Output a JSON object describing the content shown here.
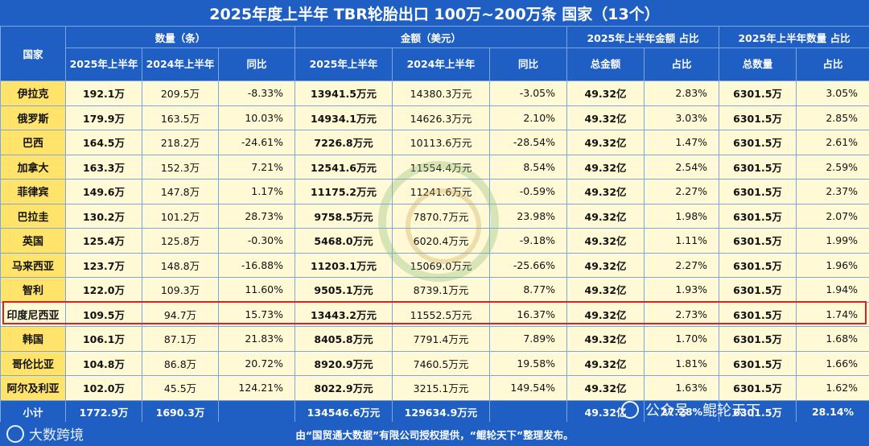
{
  "title": "2025年度上半年 TBR轮胎出口 100万~200万条 国家（13个）",
  "headers": {
    "country": "国家",
    "group_qty": "数量（条）",
    "group_amt": "金额（美元）",
    "group_amt_share": "2025年上半年金额 占比",
    "group_qty_share": "2025年上半年数量 占比",
    "h2025": "2025年上半年",
    "h2024": "2024年上半年",
    "yoy": "同比",
    "total_amount": "总金额",
    "share": "占比",
    "total_qty": "总数量"
  },
  "rows": [
    {
      "country": "伊拉克",
      "q25": "192.1万",
      "q24": "209.5万",
      "qy": "-8.33%",
      "a25": "13941.5万元",
      "a24": "14380.3万元",
      "ay": "-3.05%",
      "ta": "49.32亿",
      "as": "2.83%",
      "tq": "6301.5万",
      "qs": "3.05%"
    },
    {
      "country": "俄罗斯",
      "q25": "179.9万",
      "q24": "163.5万",
      "qy": "10.03%",
      "a25": "14934.1万元",
      "a24": "14626.3万元",
      "ay": "2.10%",
      "ta": "49.32亿",
      "as": "3.03%",
      "tq": "6301.5万",
      "qs": "2.85%"
    },
    {
      "country": "巴西",
      "q25": "164.5万",
      "q24": "218.2万",
      "qy": "-24.61%",
      "a25": "7226.8万元",
      "a24": "10113.6万元",
      "ay": "-28.54%",
      "ta": "49.32亿",
      "as": "1.47%",
      "tq": "6301.5万",
      "qs": "2.61%"
    },
    {
      "country": "加拿大",
      "q25": "163.3万",
      "q24": "152.3万",
      "qy": "7.21%",
      "a25": "12541.6万元",
      "a24": "11554.4万元",
      "ay": "8.54%",
      "ta": "49.32亿",
      "as": "2.54%",
      "tq": "6301.5万",
      "qs": "2.59%"
    },
    {
      "country": "菲律宾",
      "q25": "149.6万",
      "q24": "147.8万",
      "qy": "1.17%",
      "a25": "11175.2万元",
      "a24": "11241.6万元",
      "ay": "-0.59%",
      "ta": "49.32亿",
      "as": "2.27%",
      "tq": "6301.5万",
      "qs": "2.37%"
    },
    {
      "country": "巴拉圭",
      "q25": "130.2万",
      "q24": "101.2万",
      "qy": "28.73%",
      "a25": "9758.5万元",
      "a24": "7870.7万元",
      "ay": "23.98%",
      "ta": "49.32亿",
      "as": "1.98%",
      "tq": "6301.5万",
      "qs": "2.07%"
    },
    {
      "country": "英国",
      "q25": "125.4万",
      "q24": "125.8万",
      "qy": "-0.30%",
      "a25": "5468.0万元",
      "a24": "6020.4万元",
      "ay": "-9.18%",
      "ta": "49.32亿",
      "as": "1.11%",
      "tq": "6301.5万",
      "qs": "1.99%"
    },
    {
      "country": "马来西亚",
      "q25": "123.7万",
      "q24": "148.8万",
      "qy": "-16.88%",
      "a25": "11203.1万元",
      "a24": "15069.0万元",
      "ay": "-25.66%",
      "ta": "49.32亿",
      "as": "2.27%",
      "tq": "6301.5万",
      "qs": "1.96%"
    },
    {
      "country": "智利",
      "q25": "122.0万",
      "q24": "109.3万",
      "qy": "11.60%",
      "a25": "9505.1万元",
      "a24": "8739.1万元",
      "ay": "8.77%",
      "ta": "49.32亿",
      "as": "1.93%",
      "tq": "6301.5万",
      "qs": "1.94%"
    },
    {
      "country": "印度尼西亚",
      "q25": "109.5万",
      "q24": "94.7万",
      "qy": "15.73%",
      "a25": "13443.2万元",
      "a24": "11552.5万元",
      "ay": "16.37%",
      "ta": "49.32亿",
      "as": "2.73%",
      "tq": "6301.5万",
      "qs": "1.74%"
    },
    {
      "country": "韩国",
      "q25": "106.1万",
      "q24": "87.1万",
      "qy": "21.83%",
      "a25": "8405.8万元",
      "a24": "7791.4万元",
      "ay": "7.89%",
      "ta": "49.32亿",
      "as": "1.70%",
      "tq": "6301.5万",
      "qs": "1.68%"
    },
    {
      "country": "哥伦比亚",
      "q25": "104.8万",
      "q24": "86.8万",
      "qy": "20.72%",
      "a25": "8920.9万元",
      "a24": "7460.5万元",
      "ay": "19.58%",
      "ta": "49.32亿",
      "as": "1.81%",
      "tq": "6301.5万",
      "qs": "1.66%"
    },
    {
      "country": "阿尔及利亚",
      "q25": "102.0万",
      "q24": "45.5万",
      "qy": "124.21%",
      "a25": "8022.9万元",
      "a24": "3215.1万元",
      "ay": "149.54%",
      "ta": "49.32亿",
      "as": "1.63%",
      "tq": "6301.5万",
      "qs": "1.62%"
    }
  ],
  "subtotal": {
    "label": "小计",
    "q25": "1772.9万",
    "q24": "1690.3万",
    "qy": "",
    "a25": "134546.6万元",
    "a24": "129634.9万元",
    "ay": "",
    "ta": "49.32亿",
    "as": "27.28%",
    "tq": "6301.5万",
    "qs": "28.14%"
  },
  "footer": "由“国贸通大数据”有限公司授权提供，“鲲轮天下”整理发布。",
  "watermark_left": "大数跨境",
  "watermark_right": "公众号 · 鲲轮天下",
  "highlight_row": "印度尼西亚",
  "colors": {
    "header": "#1f5fc4",
    "country_cell": "#ffe36a",
    "body": "#fff9d6",
    "highlight_border": "#e02020"
  }
}
